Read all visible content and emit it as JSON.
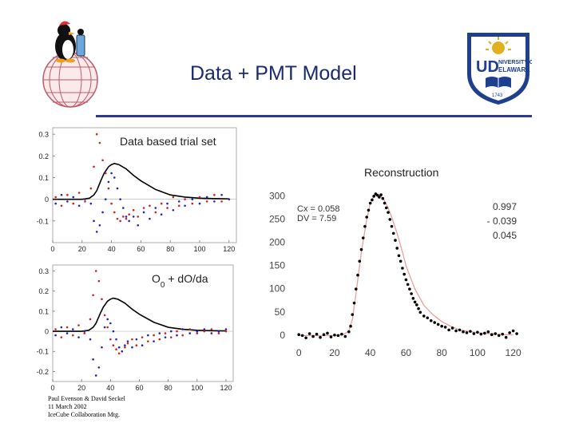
{
  "slide": {
    "title": "Data + PMT Model",
    "credits": [
      "Paul Evenson & David Seckel",
      "11 March 2002",
      "IceCube Collaboration Mtg."
    ]
  },
  "colors": {
    "accent": "#2b3a8c",
    "red_series": "#cc2222",
    "blue_series": "#2222bb",
    "model": "#000000",
    "fit": "#e8a0a0",
    "ud_blue": "#1f3f8f",
    "ud_gold": "#e0b020"
  },
  "chart_data": [
    {
      "type": "scatter",
      "title": "Data based trial set",
      "xlabel": "",
      "ylabel": "",
      "xlim": [
        0,
        125
      ],
      "ylim": [
        -0.2,
        0.33
      ],
      "xticks": [
        0,
        20,
        40,
        60,
        80,
        100,
        120
      ],
      "yticks": [
        -0.1,
        0,
        0.1,
        0.2,
        0.3
      ],
      "series": [
        {
          "style": "black line",
          "x": [
            0,
            20,
            25,
            28,
            30,
            33,
            35,
            37,
            38,
            40,
            42,
            45,
            50,
            55,
            60,
            70,
            80,
            90,
            100,
            110,
            120
          ],
          "y": [
            0,
            0,
            0.005,
            0.02,
            0.04,
            0.09,
            0.12,
            0.14,
            0.15,
            0.16,
            0.165,
            0.16,
            0.14,
            0.11,
            0.085,
            0.045,
            0.02,
            0.01,
            0.005,
            0.003,
            0.002
          ]
        },
        {
          "style": "red dots",
          "x": [
            2,
            6,
            10,
            14,
            18,
            22,
            26,
            28,
            30,
            32,
            34,
            36,
            38,
            40,
            42,
            44,
            46,
            48,
            50,
            52,
            55,
            58,
            62,
            66,
            70,
            74,
            78,
            82,
            86,
            90,
            95,
            100,
            105,
            110,
            115,
            120
          ],
          "y": [
            0.01,
            -0.03,
            0.02,
            -0.02,
            0.03,
            -0.01,
            0.05,
            0.15,
            0.3,
            0.26,
            0.18,
            0.12,
            0.05,
            -0.02,
            -0.06,
            -0.09,
            -0.1,
            -0.08,
            -0.09,
            -0.07,
            -0.05,
            -0.08,
            -0.04,
            -0.03,
            -0.06,
            -0.02,
            -0.04,
            0.01,
            -0.03,
            0.0,
            -0.02,
            0.01,
            -0.01,
            0.02,
            -0.01,
            0.0
          ]
        },
        {
          "style": "blue dots",
          "x": [
            2,
            6,
            10,
            14,
            18,
            22,
            26,
            28,
            30,
            32,
            34,
            36,
            38,
            40,
            42,
            44,
            46,
            48,
            50,
            52,
            55,
            58,
            62,
            66,
            70,
            74,
            78,
            82,
            86,
            90,
            95,
            100,
            105,
            110,
            115,
            120
          ],
          "y": [
            -0.02,
            0.02,
            -0.01,
            0.01,
            -0.03,
            0.0,
            -0.02,
            -0.1,
            -0.15,
            -0.12,
            -0.06,
            0.0,
            0.08,
            0.12,
            0.1,
            0.05,
            0.0,
            -0.04,
            -0.08,
            -0.1,
            -0.08,
            -0.12,
            -0.06,
            -0.09,
            -0.04,
            -0.07,
            -0.02,
            -0.05,
            -0.01,
            -0.03,
            0.0,
            -0.02,
            0.01,
            -0.01,
            0.02,
            0.0
          ]
        }
      ]
    },
    {
      "type": "scatter",
      "title": "O0 + dO/da",
      "xlabel": "",
      "ylabel": "",
      "xlim": [
        0,
        125
      ],
      "ylim": [
        -0.25,
        0.33
      ],
      "xticks": [
        0,
        20,
        40,
        60,
        80,
        100,
        120
      ],
      "yticks": [
        -0.2,
        -0.1,
        0,
        0.1,
        0.2,
        0.3
      ],
      "series": [
        {
          "style": "black line",
          "x": [
            0,
            20,
            25,
            28,
            30,
            33,
            35,
            37,
            38,
            40,
            42,
            45,
            50,
            55,
            60,
            70,
            80,
            90,
            100,
            110,
            120
          ],
          "y": [
            0,
            0,
            0.005,
            0.02,
            0.04,
            0.09,
            0.12,
            0.14,
            0.15,
            0.16,
            0.165,
            0.16,
            0.14,
            0.11,
            0.085,
            0.045,
            0.02,
            0.01,
            0.005,
            0.003,
            0.002
          ]
        },
        {
          "style": "red dots",
          "x": [
            2,
            6,
            10,
            14,
            18,
            22,
            26,
            28,
            30,
            32,
            34,
            36,
            38,
            40,
            42,
            44,
            46,
            48,
            50,
            52,
            55,
            58,
            62,
            66,
            70,
            74,
            78,
            82,
            86,
            90,
            95,
            100,
            105,
            110,
            115,
            120
          ],
          "y": [
            0.01,
            -0.03,
            0.02,
            -0.02,
            0.03,
            -0.01,
            0.06,
            0.18,
            0.3,
            0.25,
            0.16,
            0.08,
            0.02,
            -0.04,
            -0.07,
            -0.09,
            -0.11,
            -0.1,
            -0.08,
            -0.06,
            -0.04,
            -0.07,
            -0.03,
            -0.05,
            -0.02,
            -0.04,
            -0.01,
            -0.03,
            0.0,
            -0.02,
            0.01,
            -0.01,
            0.0,
            0.01,
            -0.01,
            0.0
          ]
        },
        {
          "style": "blue dots",
          "x": [
            2,
            6,
            10,
            14,
            18,
            22,
            26,
            28,
            30,
            32,
            34,
            36,
            38,
            40,
            42,
            44,
            46,
            48,
            50,
            52,
            55,
            58,
            62,
            66,
            70,
            74,
            78,
            82,
            86,
            90,
            95,
            100,
            105,
            110,
            115,
            120
          ],
          "y": [
            -0.02,
            0.02,
            -0.01,
            0.01,
            -0.03,
            0.0,
            -0.04,
            -0.14,
            -0.22,
            -0.18,
            -0.08,
            0.02,
            0.06,
            0.04,
            0.0,
            -0.04,
            -0.08,
            -0.1,
            -0.07,
            -0.05,
            -0.08,
            -0.04,
            -0.07,
            -0.02,
            -0.05,
            -0.01,
            -0.03,
            0.0,
            -0.02,
            0.01,
            -0.01,
            0.0,
            0.01,
            -0.01,
            0.0,
            0.01
          ]
        }
      ]
    },
    {
      "type": "scatter",
      "title": "Reconstruction",
      "xlabel": "",
      "ylabel": "",
      "xlim": [
        -5,
        130
      ],
      "ylim": [
        -20,
        310
      ],
      "xticks": [
        0,
        20,
        40,
        60,
        80,
        100,
        120
      ],
      "yticks": [
        0,
        50,
        100,
        150,
        200,
        250,
        300
      ],
      "annotations": {
        "left": [
          "Cx  =  0.058",
          "DV  =  7.59"
        ],
        "right": [
          "0.997",
          "- 0.039",
          "0.045"
        ]
      },
      "series": [
        {
          "style": "pink fit line",
          "x": [
            0,
            10,
            20,
            25,
            28,
            30,
            32,
            35,
            38,
            40,
            42,
            44,
            46,
            48,
            50,
            52,
            55,
            58,
            60,
            65,
            70,
            75,
            80,
            85,
            90,
            100,
            110,
            120
          ],
          "y": [
            0,
            0,
            0,
            2,
            10,
            35,
            90,
            180,
            250,
            285,
            300,
            305,
            300,
            290,
            275,
            255,
            220,
            180,
            150,
            100,
            65,
            45,
            30,
            20,
            12,
            6,
            3,
            1
          ]
        },
        {
          "style": "black dots",
          "x": [
            0,
            2,
            4,
            6,
            8,
            10,
            12,
            14,
            16,
            18,
            20,
            22,
            24,
            26,
            28,
            29,
            30,
            31,
            32,
            33,
            34,
            35,
            36,
            37,
            38,
            39,
            40,
            41,
            42,
            43,
            44,
            45,
            46,
            47,
            48,
            49,
            50,
            51,
            52,
            53,
            54,
            55,
            56,
            57,
            58,
            59,
            60,
            61,
            62,
            63,
            64,
            65,
            66,
            67,
            68,
            70,
            72,
            74,
            76,
            78,
            80,
            82,
            84,
            86,
            88,
            90,
            92,
            94,
            96,
            98,
            100,
            102,
            104,
            106,
            108,
            110,
            112,
            114,
            116,
            118,
            120,
            122
          ],
          "y": [
            2,
            0,
            -5,
            4,
            -2,
            3,
            -4,
            2,
            5,
            -3,
            1,
            0,
            3,
            -2,
            8,
            20,
            45,
            70,
            100,
            130,
            160,
            185,
            210,
            235,
            255,
            270,
            285,
            292,
            300,
            305,
            302,
            298,
            303,
            295,
            285,
            275,
            265,
            250,
            235,
            220,
            205,
            188,
            172,
            160,
            145,
            132,
            120,
            110,
            100,
            90,
            80,
            72,
            66,
            58,
            50,
            42,
            38,
            32,
            28,
            24,
            20,
            18,
            12,
            16,
            10,
            12,
            8,
            6,
            9,
            4,
            7,
            3,
            5,
            8,
            2,
            4,
            0,
            3,
            -4,
            6,
            10,
            4
          ]
        }
      ]
    }
  ]
}
